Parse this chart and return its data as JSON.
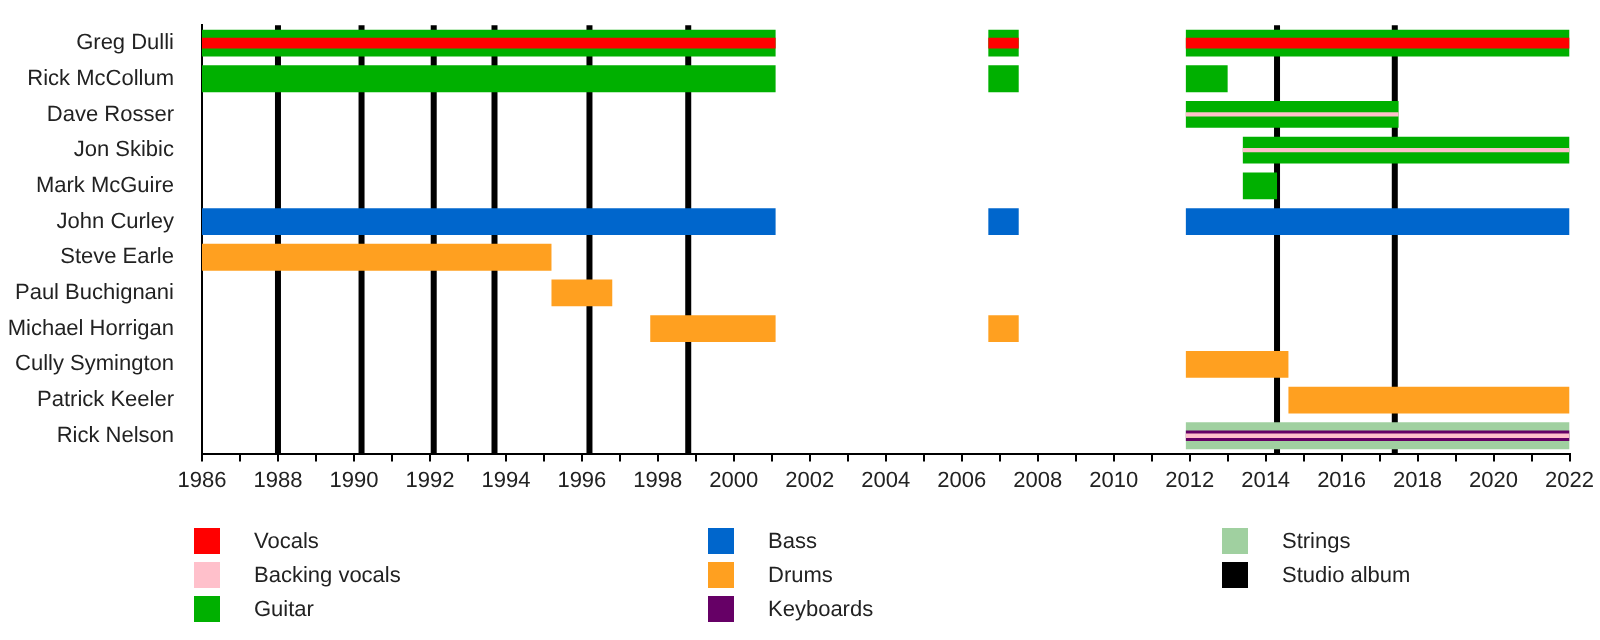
{
  "chart_data": {
    "type": "bar",
    "orientation": "horizontal",
    "categories": [
      "Greg Dulli",
      "Rick McCollum",
      "Dave Rosser",
      "Jon Skibic",
      "Mark McGuire",
      "John Curley",
      "Steve Earle",
      "Paul Buchignani",
      "Michael Horrigan",
      "Cully Symington",
      "Patrick Keeler",
      "Rick Nelson"
    ],
    "series": [
      {
        "name": "Vocals",
        "color": "#ff0000",
        "base": [
          1986,
          null,
          null,
          null,
          null,
          null,
          null,
          null,
          null,
          null,
          null,
          null
        ],
        "values": [
          15.1,
          null,
          null,
          null,
          null,
          null,
          null,
          null,
          null,
          null,
          null,
          null
        ]
      },
      {
        "name": "Backing vocals",
        "color": "#ffc0cb",
        "base": [
          null,
          null,
          2011.9,
          2013.4,
          null,
          null,
          null,
          null,
          null,
          null,
          null,
          2011.9
        ],
        "values": [
          null,
          null,
          5.6,
          8.6,
          null,
          null,
          null,
          null,
          null,
          null,
          null,
          10.1
        ]
      },
      {
        "name": "Guitar",
        "color": "#00b000",
        "base": [
          1986,
          1986,
          2011.9,
          2013.4,
          2013.4,
          null,
          null,
          null,
          null,
          null,
          null,
          null
        ],
        "values": [
          15.1,
          15.1,
          5.6,
          8.6,
          0.9,
          null,
          null,
          null,
          null,
          null,
          null,
          null
        ]
      },
      {
        "name": "Bass",
        "color": "#0066cc",
        "base": [
          null,
          null,
          null,
          null,
          null,
          1986,
          null,
          null,
          null,
          null,
          null,
          null
        ],
        "values": [
          null,
          null,
          null,
          null,
          null,
          15.1,
          null,
          null,
          null,
          null,
          null,
          null
        ]
      },
      {
        "name": "Drums",
        "color": "#ffa020",
        "base": [
          null,
          null,
          null,
          null,
          null,
          null,
          1986,
          1995.2,
          1997.8,
          2011.9,
          2014.6,
          null
        ],
        "values": [
          null,
          null,
          null,
          null,
          null,
          null,
          9.2,
          1.6,
          3.3,
          2.7,
          7.4,
          null
        ]
      },
      {
        "name": "Keyboards",
        "color": "#660066",
        "base": [
          null,
          null,
          null,
          null,
          null,
          null,
          null,
          null,
          null,
          null,
          null,
          2011.9
        ],
        "values": [
          null,
          null,
          null,
          null,
          null,
          null,
          null,
          null,
          null,
          null,
          null,
          10.1
        ]
      },
      {
        "name": "Strings",
        "color": "#a0d0a0",
        "base": [
          null,
          null,
          null,
          null,
          null,
          null,
          null,
          null,
          null,
          null,
          null,
          2011.9
        ],
        "values": [
          null,
          null,
          null,
          null,
          null,
          null,
          null,
          null,
          null,
          null,
          null,
          10.1
        ]
      },
      {
        "color": "#ff0000",
        "base": [
          2006.7,
          null,
          null,
          null,
          null,
          null,
          null,
          null,
          null,
          null,
          null,
          null
        ],
        "values": [
          0.8,
          null,
          null,
          null,
          null,
          null,
          null,
          null,
          null,
          null,
          null,
          null
        ]
      },
      {
        "color": "#ff0000",
        "base": [
          2011.9,
          null,
          null,
          null,
          null,
          null,
          null,
          null,
          null,
          null,
          null,
          null
        ],
        "values": [
          10.1,
          null,
          null,
          null,
          null,
          null,
          null,
          null,
          null,
          null,
          null,
          null
        ]
      },
      {
        "color": "#00b000",
        "base": [
          2006.7,
          2006.7,
          null,
          null,
          null,
          null,
          null,
          null,
          null,
          null,
          null,
          null
        ],
        "values": [
          0.8,
          0.8,
          null,
          null,
          null,
          null,
          null,
          null,
          null,
          null,
          null,
          null
        ]
      },
      {
        "color": "#00b000",
        "base": [
          2011.9,
          2011.9,
          null,
          null,
          null,
          null,
          null,
          null,
          null,
          null,
          null,
          null
        ],
        "values": [
          10.1,
          1.1,
          null,
          null,
          null,
          null,
          null,
          null,
          null,
          null,
          null,
          null
        ]
      },
      {
        "color": "#0066cc",
        "base": [
          null,
          null,
          null,
          null,
          null,
          2006.7,
          null,
          null,
          null,
          null,
          null,
          null
        ],
        "values": [
          null,
          null,
          null,
          null,
          null,
          0.8,
          null,
          null,
          null,
          null,
          null,
          null
        ]
      },
      {
        "color": "#0066cc",
        "base": [
          null,
          null,
          null,
          null,
          null,
          2011.9,
          null,
          null,
          null,
          null,
          null,
          null
        ],
        "values": [
          null,
          null,
          null,
          null,
          null,
          10.1,
          null,
          null,
          null,
          null,
          null,
          null
        ]
      },
      {
        "color": "#ffa020",
        "base": [
          null,
          null,
          null,
          null,
          null,
          null,
          null,
          null,
          2006.7,
          null,
          null,
          null
        ],
        "values": [
          null,
          null,
          null,
          null,
          null,
          null,
          null,
          null,
          0.8,
          null,
          null,
          null
        ]
      }
    ],
    "xlim": [
      1986,
      2022
    ],
    "xticks": [
      1986,
      {
        "value": 1987,
        "label": null
      },
      1988,
      {
        "value": 1989,
        "label": null
      },
      1990,
      {
        "value": 1991,
        "label": null
      },
      1992,
      {
        "value": 1993,
        "label": null
      },
      1994,
      {
        "value": 1995,
        "label": null
      },
      1996,
      {
        "value": 1997,
        "label": null
      },
      1998,
      {
        "value": 1999,
        "label": null
      },
      2000,
      {
        "value": 2001,
        "label": null
      },
      2002,
      {
        "value": 2003,
        "label": null
      },
      2004,
      {
        "value": 2005,
        "label": null
      },
      2006,
      {
        "value": 2007,
        "label": null
      },
      2008,
      {
        "value": 2009,
        "label": null
      },
      2010,
      {
        "value": 2011,
        "label": null
      },
      2012,
      {
        "value": 2013,
        "label": null
      },
      2014,
      {
        "value": 2015,
        "label": null
      },
      2016,
      {
        "value": 2017,
        "label": null
      },
      2018,
      {
        "value": 2019,
        "label": null
      },
      2020,
      {
        "value": 2021,
        "label": null
      },
      2022
    ],
    "ref_lines": [
      {
        "axis": "x",
        "value": 1988.0,
        "label": "Studio album",
        "color": "#000000"
      },
      {
        "axis": "x",
        "value": 1990.2,
        "color": "#000000"
      },
      {
        "axis": "x",
        "value": 1992.1,
        "color": "#000000"
      },
      {
        "axis": "x",
        "value": 1993.7,
        "color": "#000000"
      },
      {
        "axis": "x",
        "value": 1996.2,
        "color": "#000000"
      },
      {
        "axis": "x",
        "value": 1998.8,
        "color": "#000000"
      },
      {
        "axis": "x",
        "value": 2014.3,
        "color": "#000000"
      },
      {
        "axis": "x",
        "value": 2017.4,
        "color": "#000000"
      }
    ],
    "legend": "bottom"
  }
}
